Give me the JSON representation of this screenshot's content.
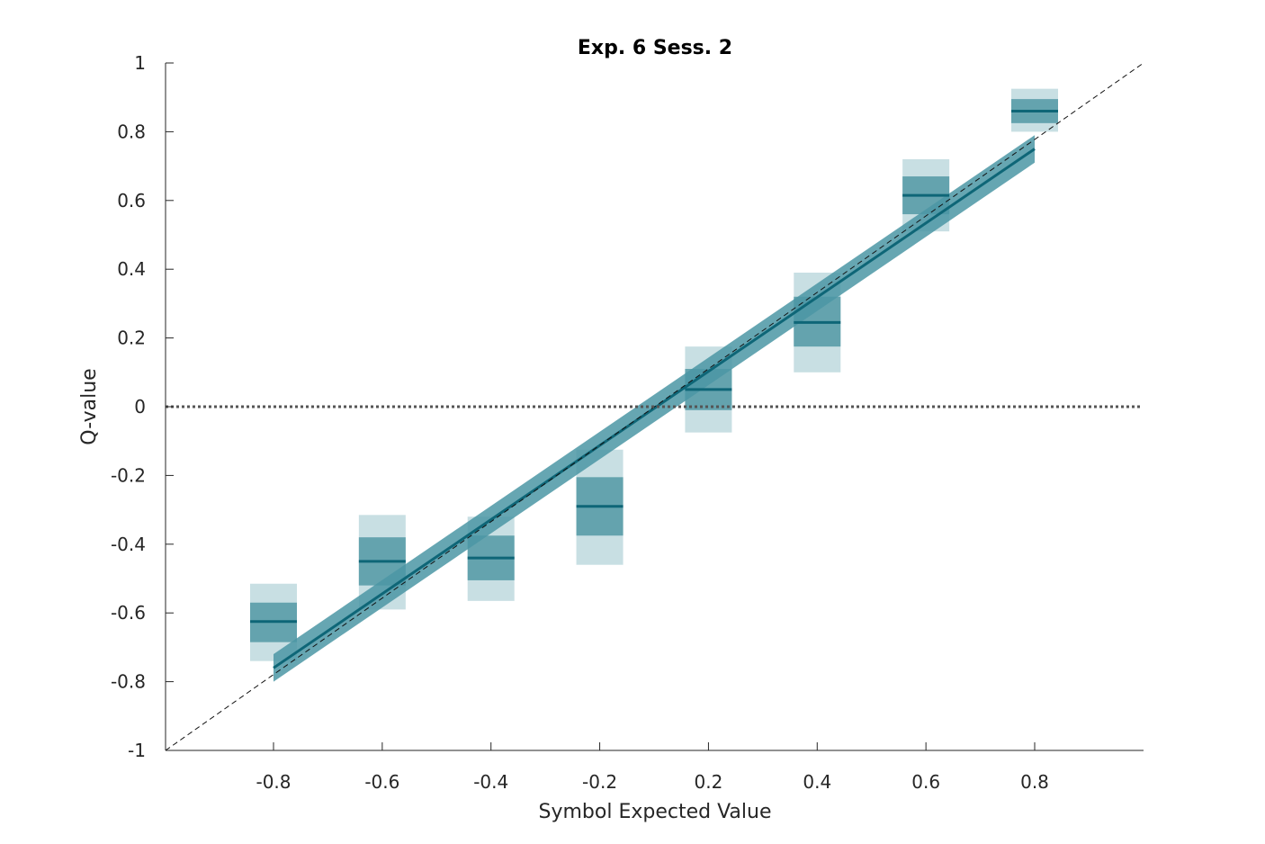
{
  "chart_data": {
    "type": "box",
    "title": "Exp. 6 Sess. 2",
    "xlabel": "Symbol Expected Value",
    "ylabel": "Q-value",
    "ylim": [
      -1,
      1
    ],
    "y_ticks": [
      "1",
      "0.8",
      "0.6",
      "0.4",
      "0.2",
      "0",
      "-0.2",
      "-0.4",
      "-0.6",
      "-0.8",
      "-1"
    ],
    "categories": [
      "-0.8",
      "-0.6",
      "-0.4",
      "-0.2",
      "0.2",
      "0.4",
      "0.6",
      "0.8"
    ],
    "ev_values": [
      -0.8,
      -0.6,
      -0.4,
      -0.2,
      0.2,
      0.4,
      0.6,
      0.8
    ],
    "means": [
      -0.625,
      -0.45,
      -0.44,
      -0.29,
      0.05,
      0.245,
      0.615,
      0.86
    ],
    "inner_band": [
      [
        -0.685,
        -0.57
      ],
      [
        -0.52,
        -0.38
      ],
      [
        -0.505,
        -0.375
      ],
      [
        -0.375,
        -0.205
      ],
      [
        -0.01,
        0.11
      ],
      [
        0.175,
        0.32
      ],
      [
        0.56,
        0.67
      ],
      [
        0.825,
        0.895
      ]
    ],
    "outer_band": [
      [
        -0.74,
        -0.515
      ],
      [
        -0.59,
        -0.315
      ],
      [
        -0.565,
        -0.32
      ],
      [
        -0.46,
        -0.125
      ],
      [
        -0.075,
        0.175
      ],
      [
        0.1,
        0.39
      ],
      [
        0.51,
        0.72
      ],
      [
        0.8,
        0.925
      ]
    ],
    "regression": {
      "x": [
        -0.8,
        0.8
      ],
      "y": [
        -0.76,
        0.75
      ],
      "ci_low": [
        -0.8,
        0.71
      ],
      "ci_high": [
        -0.72,
        0.79
      ]
    },
    "identity_line": true,
    "zero_reference_line": true,
    "colors": {
      "mean_line": "#0e6677",
      "inner_band": "#64a3ae",
      "outer_band": "#c8dfe3",
      "regression_line": "#0e6677",
      "regression_ci": "#4b97a4",
      "reference": "#555555"
    }
  }
}
